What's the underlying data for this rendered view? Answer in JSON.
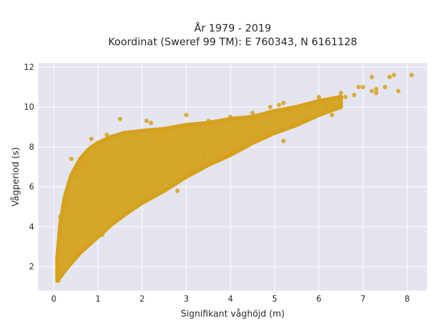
{
  "chart_data": {
    "type": "scatter",
    "title": "År 1979 - 2019",
    "subtitle": "Koordinat (Sweref 99 TM): E 760343, N 6161128",
    "xlabel": "Signifikant våghöjd (m)",
    "ylabel": "Vågperiod (s)",
    "xlim": [
      -0.35,
      8.45
    ],
    "ylim": [
      0.8,
      12.2
    ],
    "x_ticks": [
      "0",
      "1",
      "2",
      "3",
      "4",
      "5",
      "6",
      "7",
      "8"
    ],
    "y_ticks": [
      "2",
      "4",
      "6",
      "8",
      "10",
      "12"
    ],
    "grid": true,
    "marker_color": "#d4a21e",
    "plot_background": "#e5e5f0",
    "series": [
      {
        "points": [
          [
            0.1,
            1.3
          ],
          [
            0.12,
            1.5
          ],
          [
            0.15,
            2.0
          ],
          [
            0.1,
            2.6
          ],
          [
            0.2,
            3.5
          ],
          [
            0.15,
            4.5
          ],
          [
            0.3,
            5.0
          ],
          [
            0.35,
            6.0
          ],
          [
            0.5,
            6.5
          ],
          [
            0.45,
            3.0
          ],
          [
            0.7,
            7.0
          ],
          [
            0.4,
            7.4
          ],
          [
            0.85,
            8.4
          ],
          [
            0.9,
            7.7
          ],
          [
            0.6,
            7.2
          ],
          [
            0.8,
            4.3
          ],
          [
            1.0,
            8.2
          ],
          [
            1.2,
            8.6
          ],
          [
            1.25,
            8.4
          ],
          [
            1.3,
            8.1
          ],
          [
            1.5,
            9.4
          ],
          [
            1.6,
            8.3
          ],
          [
            2.1,
            9.3
          ],
          [
            2.2,
            9.2
          ],
          [
            1.7,
            5.6
          ],
          [
            1.4,
            5.0
          ],
          [
            1.1,
            3.6
          ],
          [
            2.2,
            5.5
          ],
          [
            2.8,
            5.8
          ],
          [
            2.5,
            8.7
          ],
          [
            3.0,
            9.6
          ],
          [
            3.3,
            9.1
          ],
          [
            3.5,
            9.3
          ],
          [
            4.0,
            9.5
          ],
          [
            4.5,
            9.7
          ],
          [
            3.4,
            7.6
          ],
          [
            3.7,
            8.1
          ],
          [
            4.5,
            8.5
          ],
          [
            4.8,
            9.1
          ],
          [
            4.9,
            10.0
          ],
          [
            5.1,
            10.1
          ],
          [
            5.2,
            10.2
          ],
          [
            5.1,
            9.1
          ],
          [
            5.2,
            8.3
          ],
          [
            5.5,
            9.6
          ],
          [
            6.0,
            10.2
          ],
          [
            6.0,
            10.5
          ],
          [
            5.8,
            10.0
          ],
          [
            6.2,
            10.0
          ],
          [
            6.5,
            10.7
          ],
          [
            6.6,
            10.5
          ],
          [
            6.8,
            10.6
          ],
          [
            6.9,
            11.0
          ],
          [
            7.0,
            11.0
          ],
          [
            7.2,
            11.5
          ],
          [
            7.2,
            10.8
          ],
          [
            7.3,
            10.9
          ],
          [
            7.5,
            11.0
          ],
          [
            7.6,
            11.5
          ],
          [
            7.7,
            11.6
          ],
          [
            7.3,
            10.7
          ],
          [
            7.8,
            10.8
          ],
          [
            8.1,
            11.6
          ],
          [
            6.3,
            9.6
          ],
          [
            4.6,
            8.6
          ]
        ],
        "bulk_band": [
          [
            0.08,
            1.3,
            2.4
          ],
          [
            0.15,
            1.5,
            4.2
          ],
          [
            0.25,
            1.8,
            5.5
          ],
          [
            0.4,
            2.2,
            6.6
          ],
          [
            0.6,
            2.7,
            7.4
          ],
          [
            0.8,
            3.1,
            7.9
          ],
          [
            1.0,
            3.5,
            8.2
          ],
          [
            1.3,
            4.1,
            8.5
          ],
          [
            1.6,
            4.6,
            8.7
          ],
          [
            2.0,
            5.2,
            8.8
          ],
          [
            2.5,
            5.8,
            8.9
          ],
          [
            3.0,
            6.5,
            9.1
          ],
          [
            3.5,
            7.1,
            9.2
          ],
          [
            4.0,
            7.6,
            9.4
          ],
          [
            4.5,
            8.2,
            9.5
          ],
          [
            5.0,
            8.7,
            9.8
          ],
          [
            5.5,
            9.1,
            10.0
          ],
          [
            6.0,
            9.6,
            10.3
          ],
          [
            6.5,
            10.0,
            10.5
          ]
        ]
      }
    ]
  }
}
